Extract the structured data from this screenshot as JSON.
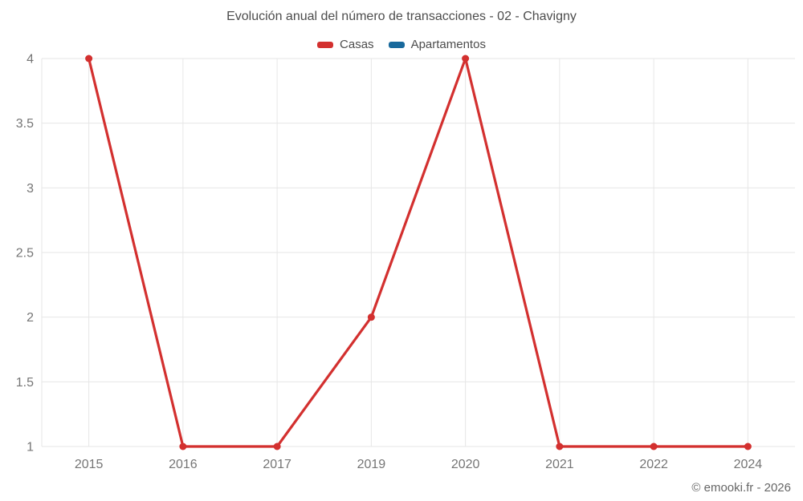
{
  "title": "Evolución anual del número de transacciones - 02 - Chavigny",
  "footer": "© emooki.fr - 2026",
  "chart_data": {
    "type": "line",
    "title": "Evolución anual del número de transacciones - 02 - Chavigny",
    "categories": [
      "2015",
      "2016",
      "2017",
      "2019",
      "2020",
      "2021",
      "2022",
      "2024"
    ],
    "series": [
      {
        "name": "Casas",
        "color": "#d3302f",
        "values": [
          4,
          1,
          1,
          2,
          4,
          1,
          1,
          1
        ]
      },
      {
        "name": "Apartamentos",
        "color": "#18699c",
        "values": []
      }
    ],
    "ylim": [
      1,
      4
    ],
    "yticks": [
      1,
      1.5,
      2,
      2.5,
      3,
      3.5,
      4
    ],
    "xlabel": "",
    "ylabel": "",
    "grid": true,
    "grid_color": "#e6e6e6",
    "tick_label_color": "#757575",
    "legend_position": "top"
  }
}
